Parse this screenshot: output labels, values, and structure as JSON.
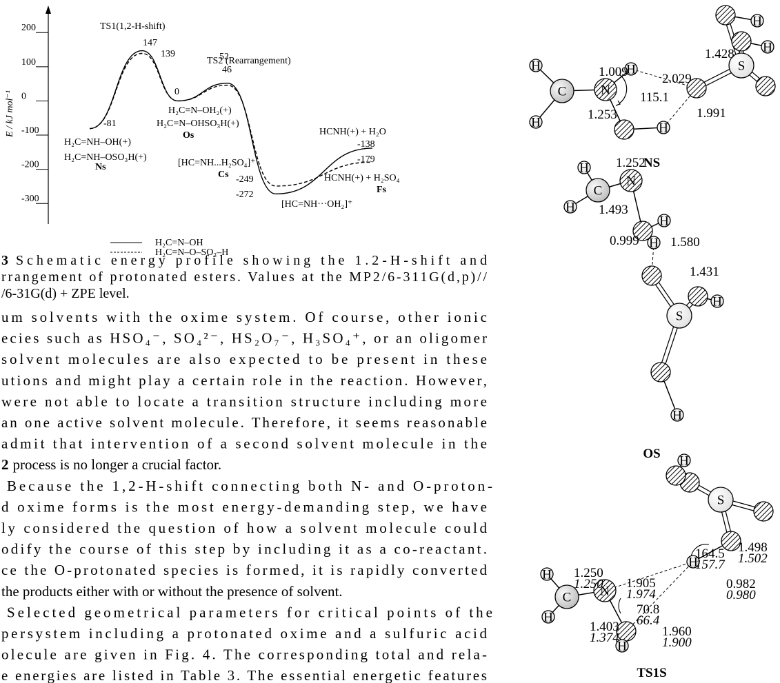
{
  "chart_data": {
    "type": "line",
    "y_label": "E / kJ mol⁻¹",
    "categories": [
      null,
      null,
      null,
      null,
      null,
      null
    ],
    "series": [
      {
        "name": "H₂C=N–OH",
        "color": "#000000",
        "style": "solid",
        "values": [
          -81,
          147,
          0,
          52,
          -272,
          -138
        ]
      },
      {
        "name": "H₂C=N–O–SO₃–H",
        "color": "#000000",
        "style": "dashed",
        "values": [
          -81,
          139,
          0,
          46,
          -249,
          -179
        ]
      }
    ],
    "ylim": [
      -360,
      265
    ],
    "yticks": [
      200,
      100,
      0,
      -100,
      -200,
      -300
    ],
    "annotations": [
      "TS1(1,2-H-shift)",
      "TS2 (Rearrangement)",
      "H₂C=NH–OH(+)",
      "H₂C=NH–OSO₃H(+)",
      "Ns",
      "H₂C=N–OH₂(+)",
      "H₂C=N–OHSO₃H(+)",
      "Os",
      "[HC=NH...H₂SO₄]⁺",
      "Cs",
      "[HC=NH···OH₂]⁺",
      "HCNH(+) + H₂O",
      "HCNH(+) + H₂SO₄",
      "Fs"
    ]
  },
  "caption": {
    "lines": [
      [
        "3",
        "Schematic energy profile showing the 1.2-H-shift and"
      ],
      [
        "rrangement of protonated esters. Values at the MP2/6-311G(d,p)//"
      ],
      [
        "/6-31G(d) + ZPE level."
      ]
    ]
  },
  "body": {
    "lines": [
      [
        "um solvents with the oxime system. Of course, other ionic"
      ],
      [
        "ecies such as HSO₄⁻, SO₄²⁻, HS₂O₇⁻, H₃SO₄⁺, or an oligomer"
      ],
      [
        "solvent molecules are also expected to be present in these"
      ],
      [
        "utions and might play a certain role in the reaction. However,"
      ],
      [
        "were not able to locate a transition structure including more"
      ],
      [
        "an one active solvent molecule. Therefore, it seems reasonable"
      ],
      [
        "admit that intervention of a second solvent molecule in the"
      ],
      [
        "2",
        "process is no longer a crucial factor."
      ],
      [
        "Because the 1,2-H-shift connecting both N- and O-proton-"
      ],
      [
        "d oxime forms is the most energy-demanding step, we have"
      ],
      [
        "ly considered the question of how a solvent molecule could"
      ],
      [
        "odify the course of this step by including it as a co-reactant."
      ],
      [
        "ce the O-protonated species is formed, it is rapidly converted"
      ],
      [
        "the products either with or without the presence of solvent."
      ],
      [
        "Selected geometrical parameters for critical points of the"
      ],
      [
        "persystem including a protonated oxime and a sulfuric acid"
      ],
      [
        "olecule are given in Fig. 4. The corresponding total and rela-"
      ],
      [
        "e energies are listed in Table 3. The essential energetic features"
      ]
    ]
  },
  "figure4": {
    "structures": [
      {
        "name": "NS",
        "atoms": [
          "H",
          "C",
          "H",
          "N",
          "H",
          "H",
          "S",
          "H",
          "H"
        ],
        "parameters": [
          "1.009",
          "2.029",
          "1.428",
          "115.1",
          "1.253",
          "1.991"
        ]
      },
      {
        "name": "OS",
        "atoms": [
          "H",
          "C",
          "H",
          "N",
          "H",
          "H",
          "S",
          "H",
          "H"
        ],
        "parameters": [
          "1.252",
          "1.493",
          "0.999",
          "1.580",
          "1.431"
        ]
      },
      {
        "name": "TS1S",
        "atoms": [
          "H",
          "C",
          "H",
          "N",
          "H",
          "H",
          "S",
          "H"
        ],
        "parameters": [
          {
            "plain": "1.250",
            "italic": "1.250"
          },
          {
            "plain": "1.905",
            "italic": "1.974"
          },
          {
            "plain": "164.5",
            "italic": "157.7"
          },
          {
            "plain": "1.498",
            "italic": "1.502"
          },
          {
            "plain": "70.8",
            "italic": "66.4"
          },
          {
            "plain": "0.982",
            "italic": "0.980"
          },
          {
            "plain": "1.403",
            "italic": "1.374"
          },
          {
            "plain": "1.960",
            "italic": "1.900"
          }
        ]
      }
    ]
  }
}
